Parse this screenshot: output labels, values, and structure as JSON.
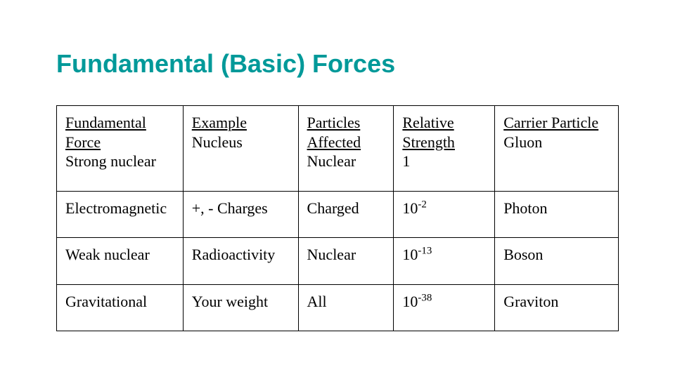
{
  "title": "Fundamental (Basic) Forces",
  "table": {
    "columns": [
      "Fundamental Force",
      "Example",
      "Particles Affected",
      "Relative Strength",
      "Carrier Particle"
    ],
    "header_underlined": true,
    "first_data_row_in_header_cell": true,
    "rows": [
      {
        "force": "Strong nuclear",
        "example": "Nucleus",
        "particles": "Nuclear",
        "strength": "1",
        "carrier": "Gluon"
      },
      {
        "force": "Electromagnetic",
        "example": "+, - Charges",
        "particles": "Charged",
        "strength": "10^-2",
        "carrier": "Photon"
      },
      {
        "force": "Weak nuclear",
        "example": "Radioactivity",
        "particles": "Nuclear",
        "strength": "10^-13",
        "carrier": "Boson"
      },
      {
        "force": "Gravitational",
        "example": "Your weight",
        "particles": "All",
        "strength": "10^-38",
        "carrier": "Graviton"
      }
    ],
    "colors": {
      "title_color": "#009999",
      "border_color": "#000000",
      "text_color": "#000000",
      "background": "#ffffff"
    },
    "font": {
      "title_family": "Arial",
      "title_size_pt": 27,
      "title_weight": "bold",
      "body_family": "Times New Roman",
      "body_size_pt": 17
    },
    "column_widths_pct": [
      22.5,
      20.5,
      17,
      18,
      22
    ]
  }
}
